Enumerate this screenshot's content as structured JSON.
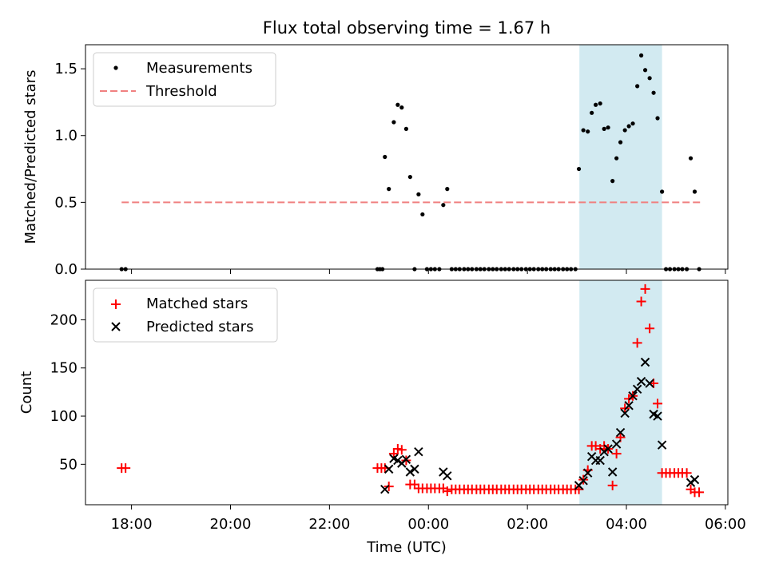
{
  "chart_data": {
    "type": "scatter",
    "title": "Flux total observing time = 1.67 h",
    "xlabel": "Time (UTC)",
    "x_ticks": [
      {
        "h": 18,
        "label": "18:00"
      },
      {
        "h": 20,
        "label": "20:00"
      },
      {
        "h": 22,
        "label": "22:00"
      },
      {
        "h": 24,
        "label": "00:00"
      },
      {
        "h": 26,
        "label": "02:00"
      },
      {
        "h": 28,
        "label": "04:00"
      },
      {
        "h": 30,
        "label": "06:00"
      }
    ],
    "xlim": [
      17.07,
      30.05
    ],
    "shaded_interval": [
      27.05,
      28.72
    ],
    "colors": {
      "shade": "#add8e6",
      "matched": "#ff0000",
      "predicted": "#000000",
      "threshold": "#f08080",
      "measure": "#000000"
    },
    "top": {
      "ylabel": "Matched/Predicted stars",
      "ylim": [
        0,
        1.68
      ],
      "y_ticks": [
        {
          "v": 0,
          "label": "0.0"
        },
        {
          "v": 0.5,
          "label": "0.5"
        },
        {
          "v": 1.0,
          "label": "1.0"
        },
        {
          "v": 1.5,
          "label": "1.5"
        }
      ],
      "legend": {
        "position": "top-left",
        "measurements": "Measurements",
        "threshold": "Threshold"
      },
      "threshold": {
        "value": 0.5,
        "x_start": 17.8,
        "x_end": 29.5
      },
      "measurements": [
        [
          17.8,
          0
        ],
        [
          17.88,
          0
        ],
        [
          22.97,
          0
        ],
        [
          23.02,
          0
        ],
        [
          23.07,
          0
        ],
        [
          23.12,
          0.84
        ],
        [
          23.2,
          0.6
        ],
        [
          23.3,
          1.1
        ],
        [
          23.38,
          1.23
        ],
        [
          23.46,
          1.21
        ],
        [
          23.55,
          1.05
        ],
        [
          23.63,
          0.69
        ],
        [
          23.72,
          0
        ],
        [
          23.8,
          0.56
        ],
        [
          23.88,
          0.41
        ],
        [
          23.97,
          0
        ],
        [
          24.05,
          0
        ],
        [
          24.13,
          0
        ],
        [
          24.22,
          0
        ],
        [
          24.3,
          0.48
        ],
        [
          24.38,
          0.6
        ],
        [
          24.47,
          0
        ],
        [
          24.55,
          0
        ],
        [
          24.63,
          0
        ],
        [
          24.72,
          0
        ],
        [
          24.8,
          0
        ],
        [
          24.88,
          0
        ],
        [
          24.97,
          0
        ],
        [
          25.05,
          0
        ],
        [
          25.13,
          0
        ],
        [
          25.22,
          0
        ],
        [
          25.3,
          0
        ],
        [
          25.38,
          0
        ],
        [
          25.47,
          0
        ],
        [
          25.55,
          0
        ],
        [
          25.63,
          0
        ],
        [
          25.72,
          0
        ],
        [
          25.8,
          0
        ],
        [
          25.88,
          0
        ],
        [
          25.97,
          0
        ],
        [
          26.05,
          0
        ],
        [
          26.13,
          0
        ],
        [
          26.22,
          0
        ],
        [
          26.3,
          0
        ],
        [
          26.38,
          0
        ],
        [
          26.47,
          0
        ],
        [
          26.55,
          0
        ],
        [
          26.63,
          0
        ],
        [
          26.72,
          0
        ],
        [
          26.8,
          0
        ],
        [
          26.88,
          0
        ],
        [
          26.97,
          0
        ],
        [
          27.04,
          0.75
        ],
        [
          27.13,
          1.04
        ],
        [
          27.22,
          1.03
        ],
        [
          27.3,
          1.17
        ],
        [
          27.38,
          1.23
        ],
        [
          27.47,
          1.24
        ],
        [
          27.55,
          1.05
        ],
        [
          27.63,
          1.06
        ],
        [
          27.72,
          0.66
        ],
        [
          27.8,
          0.83
        ],
        [
          27.88,
          0.95
        ],
        [
          27.97,
          1.04
        ],
        [
          28.05,
          1.07
        ],
        [
          28.13,
          1.09
        ],
        [
          28.22,
          1.37
        ],
        [
          28.3,
          1.6
        ],
        [
          28.38,
          1.49
        ],
        [
          28.47,
          1.43
        ],
        [
          28.55,
          1.32
        ],
        [
          28.63,
          1.13
        ],
        [
          28.72,
          0.58
        ],
        [
          28.8,
          0
        ],
        [
          28.88,
          0
        ],
        [
          28.97,
          0
        ],
        [
          29.05,
          0
        ],
        [
          29.13,
          0
        ],
        [
          29.22,
          0
        ],
        [
          29.3,
          0.83
        ],
        [
          29.38,
          0.58
        ],
        [
          29.47,
          0
        ]
      ]
    },
    "bottom": {
      "ylabel": "Count",
      "ylim": [
        8,
        241
      ],
      "y_ticks": [
        {
          "v": 50,
          "label": "50"
        },
        {
          "v": 100,
          "label": "100"
        },
        {
          "v": 150,
          "label": "150"
        },
        {
          "v": 200,
          "label": "200"
        }
      ],
      "legend": {
        "position": "top-left",
        "matched": "Matched stars",
        "predicted": "Predicted stars"
      },
      "series": [
        {
          "name": "Matched stars",
          "marker": "plus",
          "points": [
            [
              17.8,
              46
            ],
            [
              17.88,
              46
            ],
            [
              22.97,
              46
            ],
            [
              23.05,
              46
            ],
            [
              23.12,
              46
            ],
            [
              23.2,
              27
            ],
            [
              23.3,
              61
            ],
            [
              23.38,
              66
            ],
            [
              23.46,
              65
            ],
            [
              23.55,
              54
            ],
            [
              23.63,
              29
            ],
            [
              23.72,
              29
            ],
            [
              23.8,
              25
            ],
            [
              23.88,
              25
            ],
            [
              23.97,
              25
            ],
            [
              24.05,
              25
            ],
            [
              24.13,
              25
            ],
            [
              24.22,
              25
            ],
            [
              24.3,
              25
            ],
            [
              24.38,
              22
            ],
            [
              24.47,
              24
            ],
            [
              24.55,
              24
            ],
            [
              24.63,
              24
            ],
            [
              24.72,
              24
            ],
            [
              24.8,
              24
            ],
            [
              24.88,
              24
            ],
            [
              24.97,
              24
            ],
            [
              25.05,
              24
            ],
            [
              25.13,
              24
            ],
            [
              25.22,
              24
            ],
            [
              25.3,
              24
            ],
            [
              25.38,
              24
            ],
            [
              25.47,
              24
            ],
            [
              25.55,
              24
            ],
            [
              25.63,
              24
            ],
            [
              25.72,
              24
            ],
            [
              25.8,
              24
            ],
            [
              25.88,
              24
            ],
            [
              25.97,
              24
            ],
            [
              26.05,
              24
            ],
            [
              26.13,
              24
            ],
            [
              26.22,
              24
            ],
            [
              26.3,
              24
            ],
            [
              26.38,
              24
            ],
            [
              26.47,
              24
            ],
            [
              26.55,
              24
            ],
            [
              26.63,
              24
            ],
            [
              26.72,
              24
            ],
            [
              26.8,
              24
            ],
            [
              26.88,
              24
            ],
            [
              26.97,
              24
            ],
            [
              27.04,
              24
            ],
            [
              27.13,
              34
            ],
            [
              27.22,
              44
            ],
            [
              27.3,
              69
            ],
            [
              27.38,
              69
            ],
            [
              27.47,
              66
            ],
            [
              27.55,
              69
            ],
            [
              27.63,
              66
            ],
            [
              27.72,
              28
            ],
            [
              27.8,
              61
            ],
            [
              27.88,
              78
            ],
            [
              27.97,
              108
            ],
            [
              28.05,
              118
            ],
            [
              28.13,
              121
            ],
            [
              28.22,
              176
            ],
            [
              28.3,
              219
            ],
            [
              28.38,
              232
            ],
            [
              28.47,
              191
            ],
            [
              28.55,
              134
            ],
            [
              28.63,
              113
            ],
            [
              28.72,
              41
            ],
            [
              28.8,
              41
            ],
            [
              28.88,
              41
            ],
            [
              28.97,
              41
            ],
            [
              29.05,
              41
            ],
            [
              29.13,
              41
            ],
            [
              29.22,
              41
            ],
            [
              29.3,
              24
            ],
            [
              29.38,
              21
            ],
            [
              29.47,
              21
            ]
          ]
        },
        {
          "name": "Predicted stars",
          "marker": "x",
          "points": [
            [
              23.12,
              24
            ],
            [
              23.2,
              45
            ],
            [
              23.3,
              56
            ],
            [
              23.38,
              54
            ],
            [
              23.46,
              51
            ],
            [
              23.55,
              55
            ],
            [
              23.63,
              42
            ],
            [
              23.72,
              45
            ],
            [
              23.8,
              63
            ],
            [
              24.3,
              42
            ],
            [
              24.38,
              38
            ],
            [
              27.04,
              28
            ],
            [
              27.13,
              33
            ],
            [
              27.22,
              41
            ],
            [
              27.3,
              58
            ],
            [
              27.38,
              54
            ],
            [
              27.47,
              54
            ],
            [
              27.55,
              63
            ],
            [
              27.63,
              66
            ],
            [
              27.72,
              42
            ],
            [
              27.8,
              71
            ],
            [
              27.88,
              83
            ],
            [
              27.97,
              103
            ],
            [
              28.05,
              111
            ],
            [
              28.13,
              121
            ],
            [
              28.22,
              128
            ],
            [
              28.3,
              136
            ],
            [
              28.38,
              156
            ],
            [
              28.47,
              134
            ],
            [
              28.55,
              102
            ],
            [
              28.63,
              100
            ],
            [
              28.72,
              70
            ],
            [
              29.3,
              31
            ],
            [
              29.38,
              34
            ]
          ]
        }
      ]
    }
  }
}
